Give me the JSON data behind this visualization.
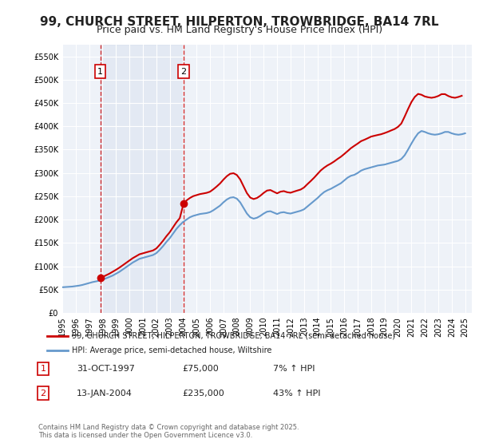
{
  "title": "99, CHURCH STREET, HILPERTON, TROWBRIDGE, BA14 7RL",
  "subtitle": "Price paid vs. HM Land Registry's House Price Index (HPI)",
  "title_fontsize": 11,
  "subtitle_fontsize": 9,
  "background_color": "#ffffff",
  "plot_bg_color": "#eef2f8",
  "grid_color": "#ffffff",
  "ylim": [
    0,
    575000
  ],
  "yticks": [
    0,
    50000,
    100000,
    150000,
    200000,
    250000,
    300000,
    350000,
    400000,
    450000,
    500000,
    550000
  ],
  "ytick_labels": [
    "£0",
    "£50K",
    "£100K",
    "£150K",
    "£200K",
    "£250K",
    "£300K",
    "£350K",
    "£400K",
    "£450K",
    "£500K",
    "£550K"
  ],
  "xlim_start": 1995.0,
  "xlim_end": 2025.5,
  "xticks": [
    1995,
    1996,
    1997,
    1998,
    1999,
    2000,
    2001,
    2002,
    2003,
    2004,
    2005,
    2006,
    2007,
    2008,
    2009,
    2010,
    2011,
    2012,
    2013,
    2014,
    2015,
    2016,
    2017,
    2018,
    2019,
    2020,
    2021,
    2022,
    2023,
    2024,
    2025
  ],
  "sale1_x": 1997.833,
  "sale1_y": 75000,
  "sale1_label": "1",
  "sale2_x": 2004.04,
  "sale2_y": 235000,
  "sale2_label": "2",
  "legend_line1": "99, CHURCH STREET, HILPERTON, TROWBRIDGE, BA14 7RL (semi-detached house)",
  "legend_line2": "HPI: Average price, semi-detached house, Wiltshire",
  "line_color_red": "#cc0000",
  "line_color_blue": "#6699cc",
  "table_rows": [
    {
      "num": "1",
      "date": "31-OCT-1997",
      "price": "£75,000",
      "change": "7% ↑ HPI"
    },
    {
      "num": "2",
      "date": "13-JAN-2004",
      "price": "£235,000",
      "change": "43% ↑ HPI"
    }
  ],
  "footer": "Contains HM Land Registry data © Crown copyright and database right 2025.\nThis data is licensed under the Open Government Licence v3.0.",
  "hpi_data_x": [
    1995.0,
    1995.25,
    1995.5,
    1995.75,
    1996.0,
    1996.25,
    1996.5,
    1996.75,
    1997.0,
    1997.25,
    1997.5,
    1997.75,
    1998.0,
    1998.25,
    1998.5,
    1998.75,
    1999.0,
    1999.25,
    1999.5,
    1999.75,
    2000.0,
    2000.25,
    2000.5,
    2000.75,
    2001.0,
    2001.25,
    2001.5,
    2001.75,
    2002.0,
    2002.25,
    2002.5,
    2002.75,
    2003.0,
    2003.25,
    2003.5,
    2003.75,
    2004.0,
    2004.25,
    2004.5,
    2004.75,
    2005.0,
    2005.25,
    2005.5,
    2005.75,
    2006.0,
    2006.25,
    2006.5,
    2006.75,
    2007.0,
    2007.25,
    2007.5,
    2007.75,
    2008.0,
    2008.25,
    2008.5,
    2008.75,
    2009.0,
    2009.25,
    2009.5,
    2009.75,
    2010.0,
    2010.25,
    2010.5,
    2010.75,
    2011.0,
    2011.25,
    2011.5,
    2011.75,
    2012.0,
    2012.25,
    2012.5,
    2012.75,
    2013.0,
    2013.25,
    2013.5,
    2013.75,
    2014.0,
    2014.25,
    2014.5,
    2014.75,
    2015.0,
    2015.25,
    2015.5,
    2015.75,
    2016.0,
    2016.25,
    2016.5,
    2016.75,
    2017.0,
    2017.25,
    2017.5,
    2017.75,
    2018.0,
    2018.25,
    2018.5,
    2018.75,
    2019.0,
    2019.25,
    2019.5,
    2019.75,
    2020.0,
    2020.25,
    2020.5,
    2020.75,
    2021.0,
    2021.25,
    2021.5,
    2021.75,
    2022.0,
    2022.25,
    2022.5,
    2022.75,
    2023.0,
    2023.25,
    2023.5,
    2023.75,
    2024.0,
    2024.25,
    2024.5,
    2024.75,
    2025.0
  ],
  "hpi_data_y": [
    55000,
    55500,
    56000,
    56500,
    57500,
    58500,
    60000,
    62000,
    64000,
    66000,
    67500,
    69000,
    71000,
    74000,
    77000,
    80000,
    84000,
    88000,
    93000,
    98000,
    103000,
    108000,
    112000,
    116000,
    118000,
    120000,
    122000,
    124000,
    128000,
    135000,
    143000,
    152000,
    160000,
    170000,
    180000,
    188000,
    195000,
    200000,
    205000,
    208000,
    210000,
    212000,
    213000,
    214000,
    216000,
    220000,
    225000,
    230000,
    237000,
    243000,
    247000,
    248000,
    245000,
    237000,
    225000,
    213000,
    205000,
    202000,
    204000,
    208000,
    213000,
    217000,
    218000,
    215000,
    212000,
    215000,
    216000,
    214000,
    213000,
    215000,
    217000,
    219000,
    222000,
    228000,
    234000,
    240000,
    246000,
    253000,
    259000,
    263000,
    266000,
    270000,
    274000,
    278000,
    284000,
    290000,
    294000,
    296000,
    300000,
    305000,
    308000,
    310000,
    312000,
    314000,
    316000,
    317000,
    318000,
    320000,
    322000,
    324000,
    326000,
    330000,
    338000,
    350000,
    363000,
    375000,
    385000,
    390000,
    388000,
    385000,
    383000,
    382000,
    383000,
    385000,
    388000,
    388000,
    385000,
    383000,
    382000,
    383000,
    385000
  ],
  "price_data_x": [
    1995.0,
    1995.25,
    1995.5,
    1995.75,
    1996.0,
    1996.25,
    1996.5,
    1996.75,
    1997.0,
    1997.25,
    1997.5,
    1997.75,
    1997.833,
    1998.0,
    1998.25,
    1998.5,
    1998.75,
    1999.0,
    1999.25,
    1999.5,
    1999.75,
    2000.0,
    2000.25,
    2000.5,
    2000.75,
    2001.0,
    2001.25,
    2001.5,
    2001.75,
    2002.0,
    2002.25,
    2002.5,
    2002.75,
    2003.0,
    2003.25,
    2003.5,
    2003.75,
    2004.04,
    2004.25,
    2004.5,
    2004.75,
    2005.0,
    2005.25,
    2005.5,
    2005.75,
    2006.0,
    2006.25,
    2006.5,
    2006.75,
    2007.0,
    2007.25,
    2007.5,
    2007.75,
    2008.0,
    2008.25,
    2008.5,
    2008.75,
    2009.0,
    2009.25,
    2009.5,
    2009.75,
    2010.0,
    2010.25,
    2010.5,
    2010.75,
    2011.0,
    2011.25,
    2011.5,
    2011.75,
    2012.0,
    2012.25,
    2012.5,
    2012.75,
    2013.0,
    2013.25,
    2013.5,
    2013.75,
    2014.0,
    2014.25,
    2014.5,
    2014.75,
    2015.0,
    2015.25,
    2015.5,
    2015.75,
    2016.0,
    2016.25,
    2016.5,
    2016.75,
    2017.0,
    2017.25,
    2017.5,
    2017.75,
    2018.0,
    2018.25,
    2018.5,
    2018.75,
    2019.0,
    2019.25,
    2019.5,
    2019.75,
    2020.0,
    2020.25,
    2020.5,
    2020.75,
    2021.0,
    2021.25,
    2021.5,
    2021.75,
    2022.0,
    2022.25,
    2022.5,
    2022.75,
    2023.0,
    2023.25,
    2023.5,
    2023.75,
    2024.0,
    2024.25,
    2024.5,
    2024.75,
    2025.0
  ],
  "price_data_y": [
    null,
    null,
    null,
    null,
    null,
    null,
    null,
    null,
    null,
    null,
    null,
    null,
    75000,
    77000,
    80500,
    84000,
    88200,
    92400,
    97000,
    102000,
    107200,
    112300,
    117400,
    121500,
    125700,
    127700,
    129800,
    131800,
    133800,
    138000,
    145800,
    154500,
    164200,
    172800,
    183600,
    194300,
    203100,
    235000,
    241000,
    246300,
    250300,
    252500,
    254700,
    256000,
    257400,
    259800,
    265000,
    271000,
    277500,
    285700,
    293000,
    298200,
    299500,
    295700,
    286200,
    271500,
    256800,
    247200,
    244100,
    246400,
    251200,
    257300,
    262300,
    263400,
    259800,
    256300,
    259900,
    261100,
    258700,
    257600,
    260000,
    262300,
    264400,
    268800,
    275900,
    282600,
    289700,
    297600,
    305400,
    311300,
    316200,
    320100,
    324700,
    330000,
    334800,
    340700,
    346900,
    353200,
    358200,
    363000,
    368200,
    371200,
    374500,
    378000,
    379800,
    381500,
    383100,
    385500,
    388200,
    391300,
    394200,
    398800,
    406000,
    421000,
    437000,
    452000,
    463000,
    469500,
    467700,
    464000,
    462300,
    461200,
    462500,
    465000,
    469000,
    469000,
    465000,
    462300,
    461200,
    463000,
    465500
  ]
}
